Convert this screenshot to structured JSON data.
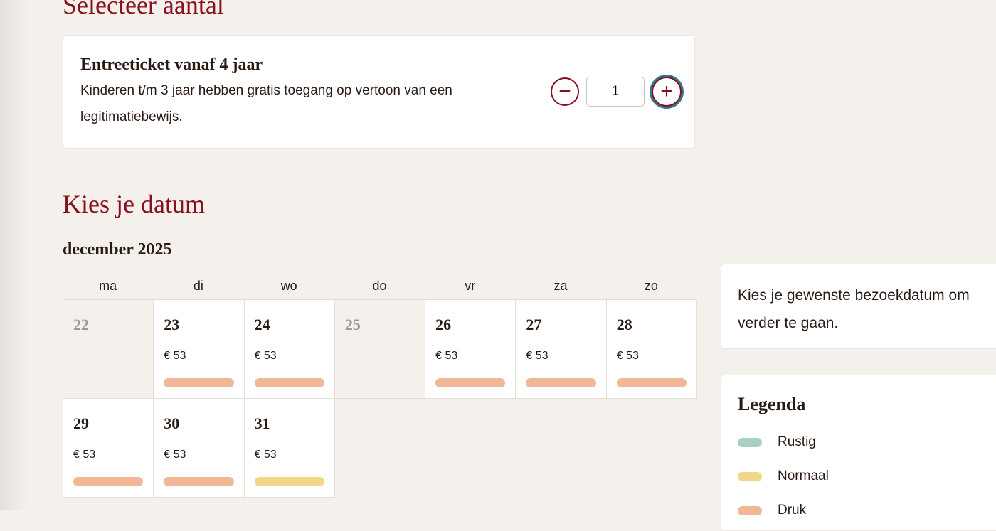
{
  "sections": {
    "quantity_title": "Selecteer aantal",
    "date_title": "Kies je datum"
  },
  "ticket": {
    "title": "Entreeticket vanaf 4 jaar",
    "description": "Kinderen t/m 3 jaar hebben gratis toegang op vertoon van een legitimatiebewijs.",
    "quantity": "1",
    "minus_icon": "minus-circle-icon",
    "plus_icon": "plus-circle-icon"
  },
  "calendar": {
    "month": "december 2025",
    "weekdays": [
      "ma",
      "di",
      "wo",
      "do",
      "vr",
      "za",
      "zo"
    ],
    "days": [
      {
        "day": "22",
        "available": false
      },
      {
        "day": "23",
        "available": true,
        "price": "€ 53",
        "crowd": "Druk"
      },
      {
        "day": "24",
        "available": true,
        "price": "€ 53",
        "crowd": "Druk"
      },
      {
        "day": "25",
        "available": false
      },
      {
        "day": "26",
        "available": true,
        "price": "€ 53",
        "crowd": "Druk"
      },
      {
        "day": "27",
        "available": true,
        "price": "€ 53",
        "crowd": "Druk"
      },
      {
        "day": "28",
        "available": true,
        "price": "€ 53",
        "crowd": "Druk"
      },
      {
        "day": "29",
        "available": true,
        "price": "€ 53",
        "crowd": "Druk"
      },
      {
        "day": "30",
        "available": true,
        "price": "€ 53",
        "crowd": "Druk"
      },
      {
        "day": "31",
        "available": true,
        "price": "€ 53",
        "crowd": "Normaal"
      }
    ]
  },
  "info": {
    "text": "Kies je gewenste bezoekdatum om verder te gaan."
  },
  "legend": {
    "title": "Legenda",
    "items": [
      {
        "label": "Rustig",
        "color": "#a9cfc6"
      },
      {
        "label": "Normaal",
        "color": "#f2d68a"
      },
      {
        "label": "Druk",
        "color": "#f0b896"
      }
    ]
  },
  "colors": {
    "accent": "#8a1020",
    "focus": "#2e7a8a"
  }
}
